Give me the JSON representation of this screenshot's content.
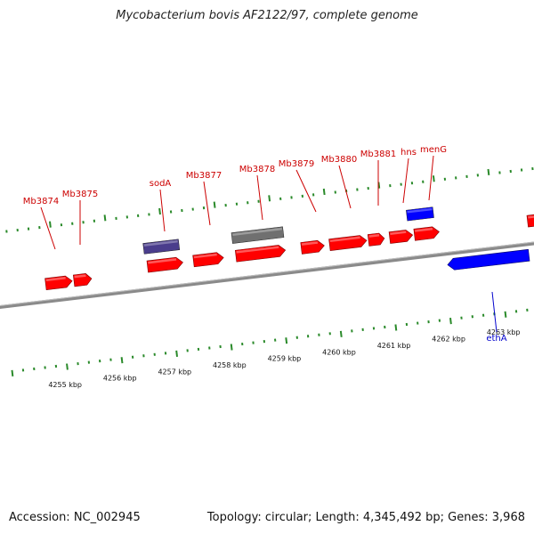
{
  "title": "Mycobacterium bovis AF2122/97, complete genome",
  "footer": {
    "accession": "Accession: NC_002945",
    "summary": "Topology: circular; Length: 4,345,492 bp; Genes: 3,968"
  },
  "colors": {
    "gene_forward": "#ff0000",
    "gene_reverse": "#0000ff",
    "gene_misc": "#4a3d8c",
    "gene_pseudo": "#707070",
    "tick": "#2a8a2a",
    "label_forward": "#cc0000",
    "label_reverse": "#0000cc",
    "backbone": "#8a8a8a"
  },
  "map": {
    "kbp_ticks": [
      "4255 kbp",
      "4256 kbp",
      "4257 kbp",
      "4258 kbp",
      "4259 kbp",
      "4260 kbp",
      "4261 kbp",
      "4262 kbp",
      "4263 kbp"
    ],
    "gene_labels": [
      {
        "text": "Mb3874",
        "strand": "forward"
      },
      {
        "text": "Mb3875",
        "strand": "forward"
      },
      {
        "text": "sodA",
        "strand": "forward"
      },
      {
        "text": "Mb3877",
        "strand": "forward"
      },
      {
        "text": "Mb3878",
        "strand": "forward"
      },
      {
        "text": "Mb3879",
        "strand": "forward"
      },
      {
        "text": "Mb3880",
        "strand": "forward"
      },
      {
        "text": "Mb3881",
        "strand": "forward"
      },
      {
        "text": "hns",
        "strand": "forward"
      },
      {
        "text": "menG",
        "strand": "forward"
      },
      {
        "text": "ethA",
        "strand": "reverse"
      }
    ]
  }
}
